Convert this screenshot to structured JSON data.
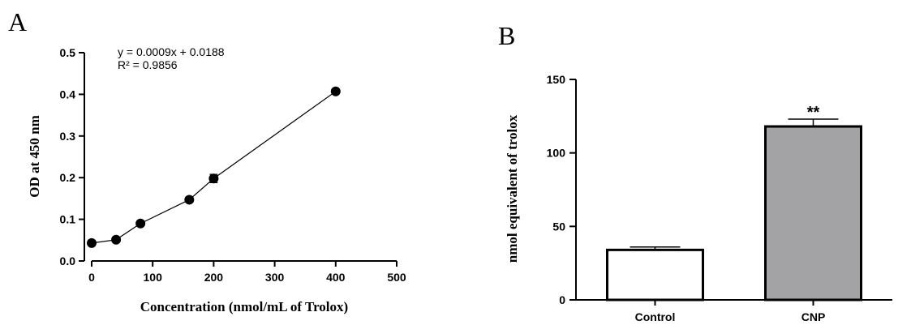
{
  "chart_data": [
    {
      "panel": "A",
      "type": "scatter",
      "xlabel": "Concentration (nmol/mL of Trolox)",
      "ylabel": "OD at 450 nm",
      "xlim": [
        0,
        500
      ],
      "ylim": [
        0,
        0.5
      ],
      "xticks": [
        0,
        100,
        200,
        300,
        400,
        500
      ],
      "yticks": [
        0.0,
        0.1,
        0.2,
        0.3,
        0.4,
        0.5
      ],
      "xtick_labels": [
        "0",
        "100",
        "200",
        "300",
        "400",
        "500"
      ],
      "ytick_labels": [
        "0.0",
        "0.1",
        "0.2",
        "0.3",
        "0.4",
        "0.5"
      ],
      "points": [
        {
          "x": 0,
          "y": 0.043,
          "err": 0.004
        },
        {
          "x": 40,
          "y": 0.051,
          "err": 0.004
        },
        {
          "x": 80,
          "y": 0.09,
          "err": 0.005
        },
        {
          "x": 160,
          "y": 0.147,
          "err": 0.004
        },
        {
          "x": 200,
          "y": 0.198,
          "err": 0.01
        },
        {
          "x": 400,
          "y": 0.407,
          "err": 0.004
        }
      ],
      "connected": true,
      "annotations": [
        "y = 0.0009x + 0.0188",
        "R² = 0.9856"
      ],
      "grid": false
    },
    {
      "panel": "B",
      "type": "bar",
      "categories": [
        "Control",
        "CNP"
      ],
      "values": [
        34,
        118
      ],
      "errors": [
        2,
        5
      ],
      "colors": [
        "#ffffff",
        "#a3a3a6"
      ],
      "ylabel": "nmol equivalent of trolox",
      "ylim": [
        0,
        150
      ],
      "yticks": [
        0,
        50,
        100,
        150
      ],
      "ytick_labels": [
        "0",
        "50",
        "100",
        "150"
      ],
      "significance": [
        "",
        "**"
      ],
      "grid": false
    }
  ]
}
